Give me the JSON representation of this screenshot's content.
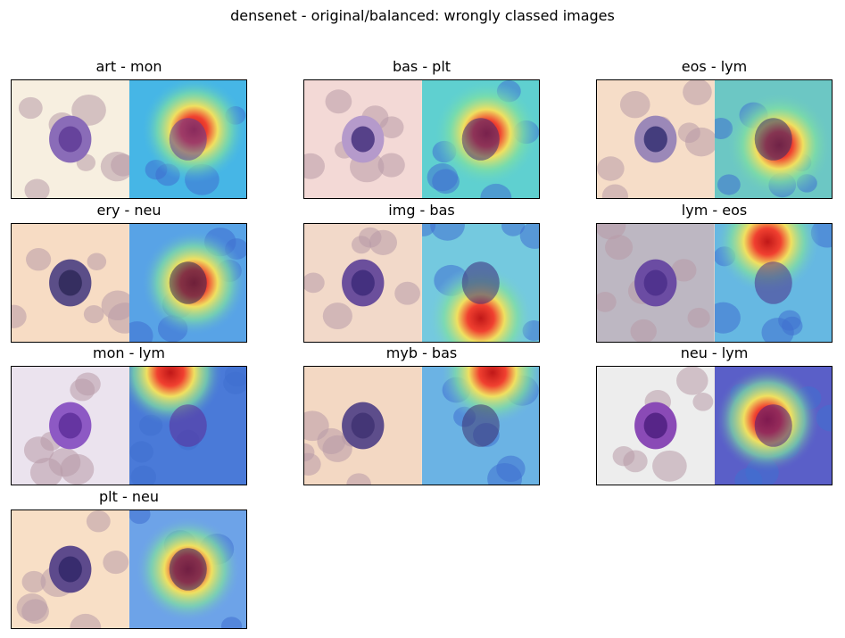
{
  "figure": {
    "title": "densenet - original/balanced: wrongly classed images",
    "panels": [
      {
        "title": "art - mon",
        "orig_bg": "#f7efe0",
        "cell": "#8a6cb8",
        "cell_dark": "#5c3a95",
        "heat_bg": "#46b6e6",
        "hot": [
          0.55,
          0.42
        ]
      },
      {
        "title": "bas - plt",
        "orig_bg": "#f3d9d6",
        "cell": "#b59acb",
        "cell_dark": "#3e2a78",
        "heat_bg": "#5fd0d0",
        "hot": [
          0.55,
          0.45
        ]
      },
      {
        "title": "eos - lym",
        "orig_bg": "#f6ddc8",
        "cell": "#9b88b8",
        "cell_dark": "#2e2b6e",
        "heat_bg": "#6cc7c4",
        "hot": [
          0.55,
          0.55
        ]
      },
      {
        "title": "ery - neu",
        "orig_bg": "#f7dcc4",
        "cell": "#5b4e88",
        "cell_dark": "#2c2756",
        "heat_bg": "#58a3e6",
        "hot": [
          0.55,
          0.5
        ]
      },
      {
        "title": "img - bas",
        "orig_bg": "#f2d9c9",
        "cell": "#6b4f9c",
        "cell_dark": "#3b2878",
        "heat_bg": "#74c9df",
        "hot": [
          0.5,
          0.8
        ]
      },
      {
        "title": "lym - eos",
        "orig_bg": "#bdb7c2",
        "cell": "#6b4ca3",
        "cell_dark": "#4a2d88",
        "heat_bg": "#66b8e2",
        "hot": [
          0.45,
          0.15
        ]
      },
      {
        "title": "mon - lym",
        "orig_bg": "#ebe3ee",
        "cell": "#8d59c4",
        "cell_dark": "#5b2c99",
        "heat_bg": "#4a7ad8",
        "hot": [
          0.35,
          0.05
        ]
      },
      {
        "title": "myb - bas",
        "orig_bg": "#f3d8c3",
        "cell": "#5d4d8b",
        "cell_dark": "#3e3170",
        "heat_bg": "#6bb3e4",
        "hot": [
          0.6,
          0.05
        ]
      },
      {
        "title": "neu - lym",
        "orig_bg": "#ededed",
        "cell": "#8a4ab6",
        "cell_dark": "#4a1b7d",
        "heat_bg": "#5a5fc8",
        "hot": [
          0.45,
          0.45
        ]
      },
      {
        "title": "plt - neu",
        "orig_bg": "#f8dfc6",
        "cell": "#5d4a8c",
        "cell_dark": "#2f2466",
        "heat_bg": "#6da3e8",
        "hot": [
          0.5,
          0.5
        ]
      }
    ]
  }
}
